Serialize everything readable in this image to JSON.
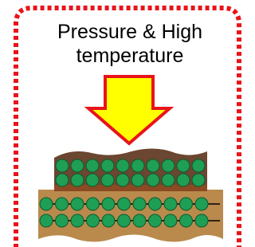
{
  "label": [
    "Pressure & High",
    "temperature"
  ]
}
